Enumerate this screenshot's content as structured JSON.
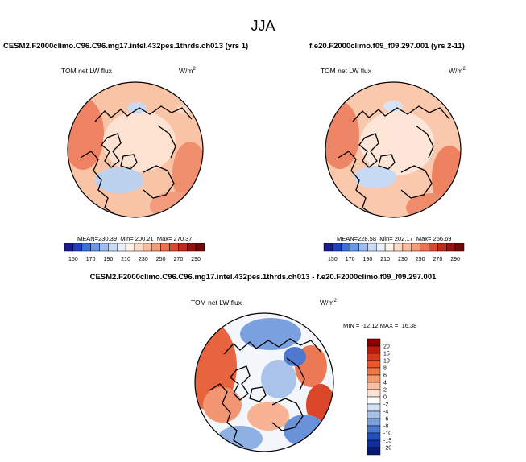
{
  "figure": {
    "season": "JJA"
  },
  "panels": [
    {
      "case_title": "CESM2.F2000climo.C96.C96.mg17.intel.432pes.1thrds.ch013 (yrs 1)",
      "variable_label": "TOM net LW flux",
      "units_base": "W/m",
      "units_exp": "2",
      "stats_mean_label": "MEAN=",
      "stats_mean": "230.39",
      "stats_min_label": "Min=",
      "stats_min": "200.21",
      "stats_max_label": "Max=",
      "stats_max": "270.37"
    },
    {
      "case_title": "f.e20.F2000climo.f09_f09.297.001 (yrs 2-11)",
      "variable_label": "TOM net LW flux",
      "units_base": "W/m",
      "units_exp": "2",
      "stats_mean_label": "MEAN=",
      "stats_mean": "228.58",
      "stats_min_label": "Min=",
      "stats_min": "202.17",
      "stats_max_label": "Max=",
      "stats_max": "266.69"
    }
  ],
  "colorbar_top": {
    "tick_labels": [
      "150",
      "170",
      "190",
      "210",
      "230",
      "250",
      "270",
      "290"
    ],
    "colors": [
      "#1b1b8c",
      "#1f3fbf",
      "#3b6fd9",
      "#6d98e6",
      "#9dbdf0",
      "#c9daf5",
      "#e9f0fb",
      "#fdf1e8",
      "#fcdcc8",
      "#f8bda1",
      "#f49a7a",
      "#ea7353",
      "#d94a32",
      "#be2a1c",
      "#951313",
      "#6b0b0b"
    ]
  },
  "difference": {
    "title": "CESM2.F2000climo.C96.C96.mg17.intel.432pes.1thrds.ch013 - f.e20.F2000climo.f09_f09.297.001",
    "variable_label": "TOM net LW flux",
    "units_base": "W/m",
    "units_exp": "2",
    "min_label": "MIN =",
    "min": "-12.12",
    "max_label": "MAX =",
    "max": "16.38",
    "colorbar": {
      "tick_labels": [
        "20",
        "15",
        "10",
        "8",
        "6",
        "4",
        "2",
        "0",
        "-2",
        "-4",
        "-6",
        "-8",
        "-10",
        "-15",
        "-20"
      ],
      "colors": [
        "#8b0000",
        "#b81a0d",
        "#d63a1c",
        "#e8582f",
        "#f07848",
        "#f59a6c",
        "#f9bf9f",
        "#fde3d4",
        "#ffffff",
        "#d3e1f4",
        "#a8c2ea",
        "#7a9fde",
        "#4c78cf",
        "#2550bc",
        "#0f2d9c",
        "#061a75"
      ]
    }
  }
}
